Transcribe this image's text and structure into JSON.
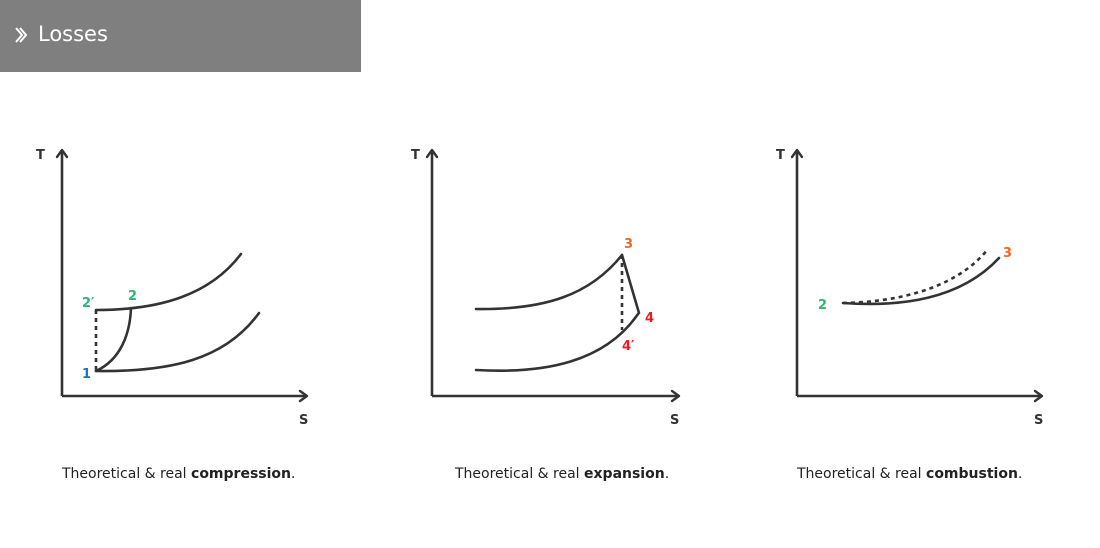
{
  "header": {
    "title": "Losses",
    "icon": "double-chevron-right-icon"
  },
  "colors": {
    "green": "#2bb673",
    "blue": "#1c75bc",
    "orange": "#f26522",
    "red": "#ed1c24"
  },
  "diagrams": [
    {
      "y_axis": "T",
      "x_axis": "S",
      "points": {
        "p1": "1",
        "p2": "2",
        "p2prime": "2′"
      },
      "caption": {
        "prefix": "Theoretical & real ",
        "bold": "compression",
        "suffix": "."
      }
    },
    {
      "y_axis": "T",
      "x_axis": "S",
      "points": {
        "p3": "3",
        "p4": "4",
        "p4prime": "4′"
      },
      "caption": {
        "prefix": "Theoretical & real ",
        "bold": "expansion",
        "suffix": "."
      }
    },
    {
      "y_axis": "T",
      "x_axis": "S",
      "points": {
        "p2": "2",
        "p3": "3"
      },
      "caption": {
        "prefix": "Theoretical & real ",
        "bold": "combustion",
        "suffix": "."
      }
    }
  ]
}
